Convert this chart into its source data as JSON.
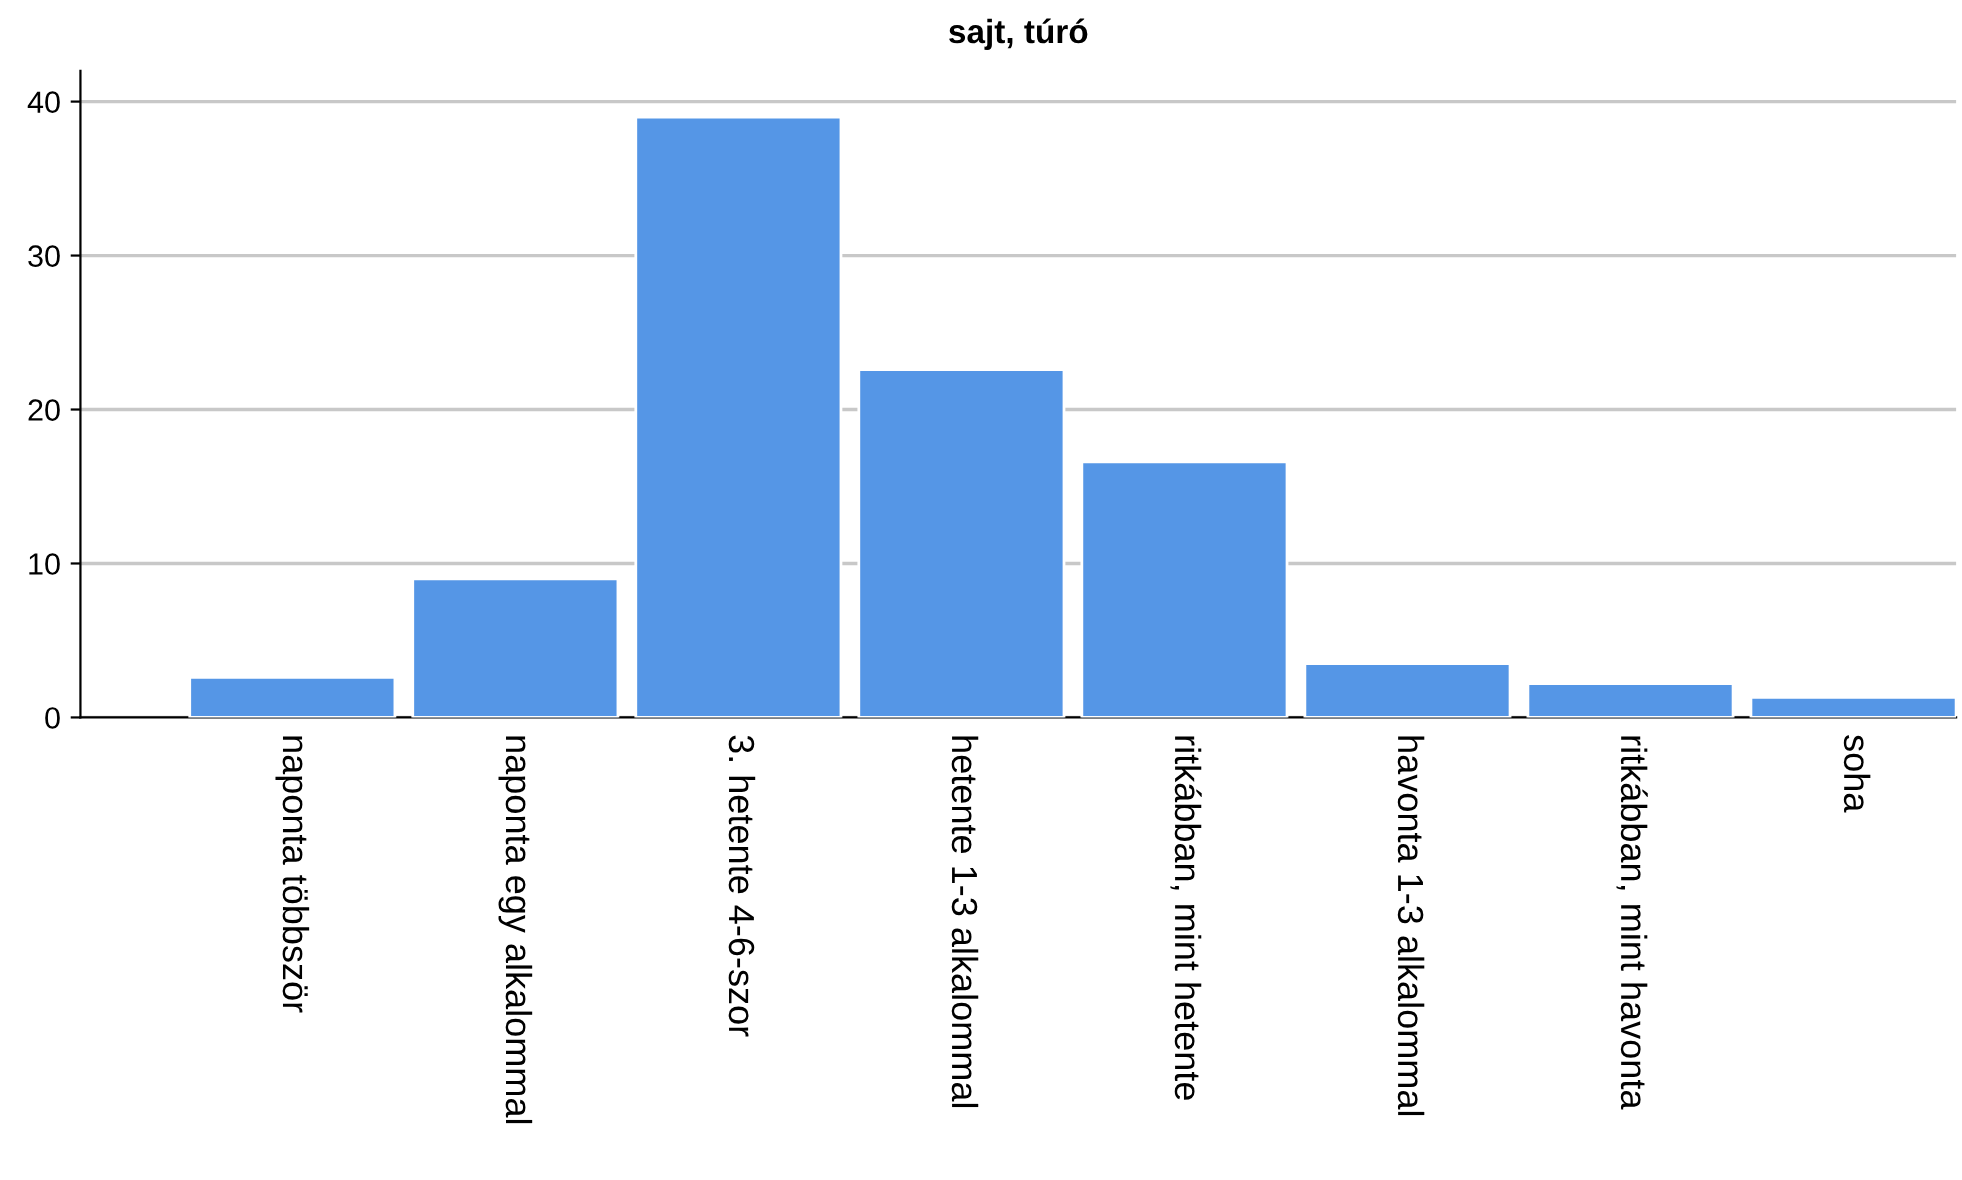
{
  "chart_data": {
    "type": "bar",
    "title": "sajt, túró",
    "categories": [
      "naponta többször",
      "naponta egy alkalommal",
      "3. hetente 4-6-szor",
      "hetente 1-3 alkalommal",
      "ritkábban, mint hetente",
      "havonta 1-3 alkalommal",
      "ritkábban, mint havonta",
      "soha"
    ],
    "values": [
      2.6,
      9.0,
      39.0,
      22.6,
      16.6,
      3.5,
      2.2,
      1.3
    ],
    "color": "#5596e6",
    "ylim": [
      0,
      42
    ],
    "yticks": [
      0,
      10,
      20,
      30,
      40
    ],
    "grid": "y"
  }
}
